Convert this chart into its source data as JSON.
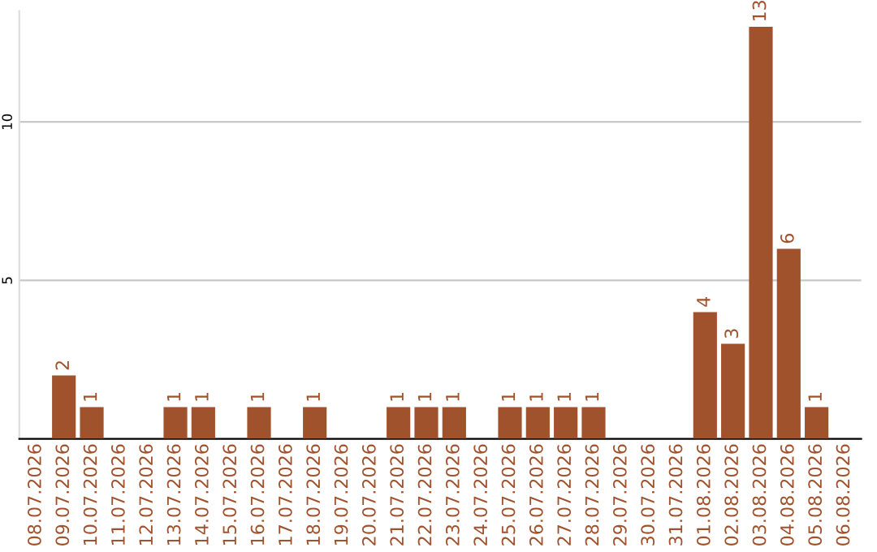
{
  "chart_data": {
    "type": "bar",
    "categories": [
      "08.07.2026",
      "09.07.2026",
      "10.07.2026",
      "11.07.2026",
      "12.07.2026",
      "13.07.2026",
      "14.07.2026",
      "15.07.2026",
      "16.07.2026",
      "17.07.2026",
      "18.07.2026",
      "19.07.2026",
      "20.07.2026",
      "21.07.2026",
      "22.07.2026",
      "23.07.2026",
      "24.07.2026",
      "25.07.2026",
      "26.07.2026",
      "27.07.2026",
      "28.07.2026",
      "29.07.2026",
      "30.07.2026",
      "31.07.2026",
      "01.08.2026",
      "02.08.2026",
      "03.08.2026",
      "04.08.2026",
      "05.08.2026",
      "06.08.2026"
    ],
    "values": [
      0,
      2,
      1,
      0,
      0,
      1,
      1,
      0,
      1,
      0,
      1,
      0,
      0,
      1,
      1,
      1,
      0,
      1,
      1,
      1,
      1,
      0,
      0,
      0,
      4,
      3,
      13,
      6,
      1,
      0
    ],
    "value_labels": [
      null,
      "2",
      "1",
      null,
      null,
      "1",
      "1",
      null,
      "1",
      null,
      "1",
      null,
      null,
      "1",
      "1",
      "1",
      null,
      "1",
      "1",
      "1",
      "1",
      null,
      null,
      null,
      "4",
      "3",
      "13",
      "6",
      "1",
      null
    ],
    "color": "#a0522d",
    "ylim": [
      0,
      13.5
    ],
    "yticks": [
      5,
      10
    ],
    "grid": "y"
  }
}
